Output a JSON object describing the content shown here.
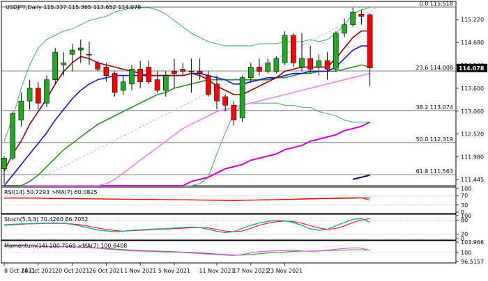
{
  "chart_data": {
    "type": "candlestick",
    "main": {
      "title": "USDJPY,Daily  115.337 115.365 113.652 114.078",
      "ylim": [
        111.3,
        115.65
      ],
      "price_ticks": [
        "115.220",
        "114.680",
        "114.140",
        "113.600",
        "113.060",
        "112.520",
        "111.980",
        "111.445"
      ],
      "last_price": "114.078",
      "candles": [
        {
          "o": 111.7,
          "h": 112.0,
          "l": 111.35,
          "c": 111.95
        },
        {
          "o": 111.95,
          "h": 113.05,
          "l": 111.9,
          "c": 113.0
        },
        {
          "o": 112.85,
          "h": 113.5,
          "l": 112.7,
          "c": 113.3
        },
        {
          "o": 113.3,
          "h": 113.8,
          "l": 113.1,
          "c": 113.6
        },
        {
          "o": 113.6,
          "h": 113.75,
          "l": 113.1,
          "c": 113.25
        },
        {
          "o": 113.25,
          "h": 113.9,
          "l": 113.15,
          "c": 113.8
        },
        {
          "o": 113.8,
          "h": 114.55,
          "l": 113.7,
          "c": 114.45
        },
        {
          "o": 114.15,
          "h": 114.45,
          "l": 113.9,
          "c": 114.2
        },
        {
          "o": 114.4,
          "h": 114.65,
          "l": 114.0,
          "c": 114.5
        },
        {
          "o": 114.5,
          "h": 114.75,
          "l": 114.2,
          "c": 114.55
        },
        {
          "o": 114.4,
          "h": 114.7,
          "l": 114.15,
          "c": 114.4
        },
        {
          "o": 114.2,
          "h": 114.25,
          "l": 114.0,
          "c": 114.05
        },
        {
          "o": 114.1,
          "h": 114.2,
          "l": 113.75,
          "c": 113.9
        },
        {
          "o": 113.95,
          "h": 114.0,
          "l": 113.4,
          "c": 113.5
        },
        {
          "o": 113.55,
          "h": 113.9,
          "l": 113.45,
          "c": 113.75
        },
        {
          "o": 113.7,
          "h": 114.15,
          "l": 113.55,
          "c": 114.05
        },
        {
          "o": 114.05,
          "h": 114.25,
          "l": 113.6,
          "c": 113.75
        },
        {
          "o": 114.1,
          "h": 114.25,
          "l": 113.7,
          "c": 113.75
        },
        {
          "o": 113.8,
          "h": 114.0,
          "l": 113.5,
          "c": 113.55
        },
        {
          "o": 113.55,
          "h": 114.0,
          "l": 113.4,
          "c": 113.9
        },
        {
          "o": 114.0,
          "h": 114.3,
          "l": 113.6,
          "c": 113.95
        },
        {
          "o": 114.05,
          "h": 114.2,
          "l": 113.9,
          "c": 114.0
        },
        {
          "o": 114.0,
          "h": 114.3,
          "l": 113.5,
          "c": 114.0
        },
        {
          "o": 114.0,
          "h": 114.3,
          "l": 113.8,
          "c": 113.95
        },
        {
          "o": 113.9,
          "h": 114.0,
          "l": 113.4,
          "c": 113.45
        },
        {
          "o": 113.7,
          "h": 113.9,
          "l": 113.1,
          "c": 113.3
        },
        {
          "o": 113.4,
          "h": 113.45,
          "l": 113.05,
          "c": 113.2
        },
        {
          "o": 113.2,
          "h": 113.3,
          "l": 112.72,
          "c": 112.85
        },
        {
          "o": 112.9,
          "h": 113.9,
          "l": 112.8,
          "c": 113.85
        },
        {
          "o": 113.85,
          "h": 114.2,
          "l": 113.75,
          "c": 114.1
        },
        {
          "o": 114.1,
          "h": 114.3,
          "l": 113.9,
          "c": 114.0
        },
        {
          "o": 114.0,
          "h": 114.3,
          "l": 113.95,
          "c": 114.2
        },
        {
          "o": 114.0,
          "h": 114.35,
          "l": 113.95,
          "c": 114.3
        },
        {
          "o": 114.2,
          "h": 114.95,
          "l": 114.15,
          "c": 114.85
        },
        {
          "o": 114.85,
          "h": 114.9,
          "l": 114.1,
          "c": 114.2
        },
        {
          "o": 114.1,
          "h": 114.9,
          "l": 114.0,
          "c": 114.3
        },
        {
          "o": 114.3,
          "h": 114.6,
          "l": 113.95,
          "c": 114.05
        },
        {
          "o": 114.1,
          "h": 114.4,
          "l": 113.9,
          "c": 114.25
        },
        {
          "o": 114.25,
          "h": 114.45,
          "l": 113.8,
          "c": 114.05
        },
        {
          "o": 114.05,
          "h": 114.95,
          "l": 114.0,
          "c": 114.9
        },
        {
          "o": 114.9,
          "h": 115.25,
          "l": 114.8,
          "c": 115.1
        },
        {
          "o": 115.1,
          "h": 115.5,
          "l": 115.05,
          "c": 115.4
        },
        {
          "o": 115.35,
          "h": 115.45,
          "l": 115.1,
          "c": 115.3
        },
        {
          "o": 115.337,
          "h": 115.365,
          "l": 113.652,
          "c": 114.078
        }
      ],
      "fibonacci": [
        {
          "level": 115.518,
          "label": "0.0 115.518"
        },
        {
          "level": 114.008,
          "label": "23.6 114.008"
        },
        {
          "level": 113.074,
          "label": "38.2 113.074"
        },
        {
          "level": 112.319,
          "label": "50.0 112.319"
        },
        {
          "level": 111.563,
          "label": "61.8 111.563"
        }
      ],
      "bollinger_upper": [
        112.35,
        112.9,
        113.6,
        114.15,
        114.55,
        114.75,
        114.85,
        114.95,
        115.0,
        115.1,
        115.2,
        115.25,
        115.3,
        115.4,
        115.45,
        115.5,
        115.5,
        115.5,
        115.45,
        115.35,
        115.2,
        115.05,
        114.9,
        114.8,
        114.7,
        114.65,
        114.6,
        114.6,
        114.6,
        114.6,
        114.65,
        114.65,
        114.65,
        114.7,
        114.7,
        114.7,
        114.75,
        114.7,
        114.75,
        114.9,
        115.1,
        115.35,
        115.45,
        115.5
      ],
      "bollinger_lower": [
        111.3,
        111.3,
        111.3,
        111.3,
        111.3,
        111.3,
        111.3,
        111.3,
        111.3,
        111.3,
        111.3,
        111.3,
        111.3,
        111.3,
        111.3,
        111.3,
        111.3,
        111.3,
        111.3,
        111.3,
        111.3,
        111.3,
        111.3,
        111.35,
        111.5,
        112.05,
        112.55,
        113.0,
        113.2,
        113.25,
        113.25,
        113.25,
        113.25,
        113.2,
        113.2,
        113.15,
        113.15,
        113.05,
        113.0,
        112.95,
        112.85,
        112.8,
        112.8,
        112.8
      ],
      "ma_fast": [
        111.65,
        112.05,
        112.35,
        112.75,
        113.05,
        113.35,
        113.7,
        114.0,
        114.2,
        114.35,
        114.3,
        114.2,
        114.15,
        114.1,
        114.05,
        114.0,
        113.95,
        113.9,
        113.9,
        113.9,
        113.9,
        113.9,
        113.95,
        113.9,
        113.8,
        113.65,
        113.55,
        113.45,
        113.45,
        113.55,
        113.65,
        113.75,
        113.85,
        114.0,
        114.05,
        114.1,
        114.1,
        114.1,
        114.1,
        114.3,
        114.55,
        114.8,
        114.95,
        114.95
      ],
      "ma_medium": [
        111.3,
        111.55,
        111.8,
        112.05,
        112.3,
        112.55,
        112.85,
        113.1,
        113.35,
        113.55,
        113.7,
        113.8,
        113.85,
        113.9,
        113.9,
        113.9,
        113.9,
        113.9,
        113.9,
        113.9,
        113.9,
        113.9,
        113.95,
        113.95,
        113.9,
        113.85,
        113.8,
        113.7,
        113.7,
        113.75,
        113.8,
        113.85,
        113.85,
        113.9,
        113.95,
        113.95,
        114.0,
        114.0,
        114.0,
        114.1,
        114.3,
        114.5,
        114.6,
        114.6
      ],
      "ma_slow": [
        111.3,
        111.3,
        111.3,
        111.4,
        111.55,
        111.75,
        111.95,
        112.15,
        112.3,
        112.45,
        112.6,
        112.75,
        112.85,
        112.95,
        113.05,
        113.15,
        113.25,
        113.35,
        113.45,
        113.5,
        113.6,
        113.65,
        113.7,
        113.75,
        113.8,
        113.8,
        113.8,
        113.8,
        113.8,
        113.8,
        113.8,
        113.8,
        113.85,
        113.85,
        113.9,
        113.95,
        113.95,
        114.0,
        114.0,
        114.0,
        114.05,
        114.1,
        114.15,
        114.1
      ],
      "ma_trend": [
        111.3,
        111.3,
        111.3,
        111.3,
        111.3,
        111.3,
        111.3,
        111.3,
        111.3,
        111.3,
        111.3,
        111.3,
        111.35,
        111.45,
        111.6,
        111.75,
        111.9,
        112.05,
        112.2,
        112.35,
        112.5,
        112.65,
        112.75,
        112.85,
        112.95,
        113.05,
        113.1,
        113.15,
        113.2,
        113.25,
        113.3,
        113.35,
        113.4,
        113.45,
        113.5,
        113.55,
        113.6,
        113.65,
        113.7,
        113.75,
        113.8,
        113.85,
        113.9,
        113.95
      ],
      "ma_long": [
        111.3,
        111.3,
        111.3,
        111.3,
        111.3,
        111.3,
        111.3,
        111.3,
        111.3,
        111.3,
        111.3,
        111.3,
        111.3,
        111.3,
        111.3,
        111.3,
        111.3,
        111.3,
        111.3,
        111.3,
        111.3,
        111.3,
        111.4,
        111.45,
        111.5,
        111.6,
        111.7,
        111.75,
        111.8,
        111.9,
        111.95,
        112.0,
        112.05,
        112.15,
        112.2,
        112.25,
        112.35,
        112.4,
        112.45,
        112.5,
        112.6,
        112.65,
        112.7,
        112.8
      ],
      "ma_very_long": [
        null,
        null,
        null,
        null,
        null,
        null,
        null,
        null,
        null,
        null,
        null,
        null,
        null,
        null,
        null,
        null,
        null,
        null,
        null,
        null,
        null,
        null,
        null,
        null,
        null,
        null,
        null,
        null,
        null,
        null,
        null,
        null,
        null,
        null,
        null,
        null,
        null,
        null,
        null,
        null,
        null,
        111.45,
        111.5,
        111.55
      ]
    },
    "rsi": {
      "label": "RSI(14) 50.7293  >MA(7) 60.0825",
      "range": [
        20,
        80
      ],
      "ticks": [
        "100",
        "70",
        "30",
        "0"
      ],
      "rsi": [
        60,
        60,
        60,
        59.5,
        59,
        58.5,
        58,
        57.5,
        57.5,
        57,
        56.5,
        56,
        55.5,
        55,
        54.5,
        54.5,
        54,
        53.5,
        53,
        52.5,
        52,
        52,
        51.5,
        51,
        50.5,
        50,
        49.5,
        49,
        50,
        51,
        52,
        52.5,
        53,
        54,
        55,
        56,
        57,
        57.5,
        58,
        59,
        60,
        60.5,
        61,
        50.7
      ],
      "ma": [
        59,
        59.5,
        59.5,
        59,
        59,
        58.5,
        58,
        58,
        57.5,
        57,
        56.5,
        56,
        56,
        55.5,
        55,
        54.5,
        54,
        54,
        53.5,
        53,
        52.5,
        52,
        52,
        51.5,
        51,
        50.5,
        50,
        50,
        50,
        50.5,
        51,
        51.5,
        52,
        53,
        54,
        55,
        56,
        57,
        57.5,
        58,
        58.5,
        59,
        60,
        60.1
      ]
    },
    "stoch": {
      "label": "Stoch(5,3,3) 70.4260 86.7052",
      "ticks": [
        "100",
        "80",
        "20",
        "0"
      ],
      "k": [
        60,
        62,
        64,
        65,
        66,
        67,
        68,
        67,
        62,
        55,
        45,
        38,
        33,
        30,
        32,
        36,
        38,
        40,
        42,
        43,
        46,
        48,
        50,
        48,
        40,
        32,
        26,
        30,
        45,
        58,
        68,
        75,
        78,
        77,
        70,
        58,
        42,
        36,
        40,
        56,
        70,
        84,
        88,
        70.4
      ],
      "d": [
        58,
        60,
        62,
        64,
        65,
        66,
        66,
        66,
        64,
        60,
        53,
        46,
        40,
        35,
        32,
        34,
        36,
        38,
        40,
        41,
        43,
        45,
        47,
        48,
        46,
        40,
        33,
        30,
        33,
        45,
        58,
        67,
        73,
        76,
        74,
        67,
        56,
        46,
        40,
        44,
        55,
        70,
        81,
        86.7
      ]
    },
    "momentum": {
      "label": "Momentum(14) 100.7569  >MA(7) 100.8408",
      "ticks": [
        "103.966",
        "100",
        "96.5157"
      ],
      "values": [
        102.5,
        102.6,
        102.7,
        102.5,
        102.3,
        102.1,
        102.2,
        102.3,
        102.2,
        102.0,
        101.8,
        101.6,
        101.3,
        101.0,
        100.8,
        100.6,
        100.5,
        100.4,
        100.3,
        100.2,
        100.1,
        100.0,
        99.8,
        99.6,
        99.3,
        99.2,
        99.0,
        98.8,
        99.2,
        99.8,
        100.3,
        100.5,
        100.6,
        100.7,
        100.8,
        100.6,
        100.4,
        100.5,
        100.8,
        101.2,
        101.5,
        101.7,
        101.6,
        100.76
      ],
      "ma": [
        102.4,
        102.4,
        102.5,
        102.5,
        102.4,
        102.3,
        102.2,
        102.2,
        102.1,
        102.0,
        101.9,
        101.7,
        101.5,
        101.3,
        101.1,
        100.9,
        100.7,
        100.6,
        100.5,
        100.4,
        100.3,
        100.1,
        100.0,
        99.8,
        99.6,
        99.4,
        99.2,
        99.0,
        99.0,
        99.2,
        99.5,
        99.8,
        100.0,
        100.2,
        100.4,
        100.5,
        100.5,
        100.6,
        100.7,
        100.8,
        100.9,
        101.0,
        101.0,
        100.84
      ]
    },
    "x_labels": [
      "8 Oct 2021",
      "14 Oct 2021",
      "20 Oct 2021",
      "26 Oct 2021",
      "1 Nov 2021",
      "5 Nov 2021",
      "11 Nov 2021",
      "17 Nov 2021",
      "23 Nov 2021"
    ],
    "x_label_index": [
      0,
      4,
      8,
      12,
      16,
      20,
      25,
      29,
      33
    ],
    "colors": {
      "bull": "#22aa22",
      "bear": "#ff0000",
      "bollinger": "#2e9e5a",
      "ma_fast": "#8b0000",
      "ma_medium": "#1010d0",
      "ma_slow": "#2d8a2d",
      "ma_trend": "#ee82ee",
      "ma_long": "#cc00cc",
      "ma_very_long": "#000080",
      "rsi": "#ff0000",
      "rsi_ma": "#6b3a1f",
      "stoch_k": "#20a0a0",
      "stoch_d": "#ff0000",
      "momentum": "#dd44dd",
      "momentum_ma": "#2d8a2d",
      "price_marker": "#000000"
    }
  }
}
